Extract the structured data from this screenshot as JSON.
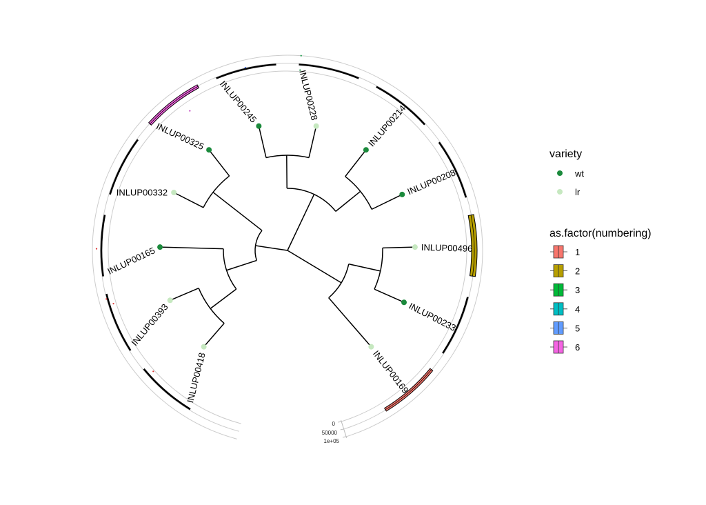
{
  "tree": {
    "tips": [
      {
        "id": "t496",
        "label": "INLUP00496",
        "variety": "lr",
        "numbering": "2"
      },
      {
        "id": "t233",
        "label": "INLUP00233",
        "variety": "wt",
        "numbering": null
      },
      {
        "id": "t169",
        "label": "INLUP00169",
        "variety": "lr",
        "numbering": "1"
      },
      {
        "id": "t418",
        "label": "INLUP00418",
        "variety": "lr",
        "numbering": null
      },
      {
        "id": "t393",
        "label": "INLUP00393",
        "variety": "lr",
        "numbering": null
      },
      {
        "id": "t165",
        "label": "INLUP00165",
        "variety": "wt",
        "numbering": null
      },
      {
        "id": "t332",
        "label": "INLUP00332",
        "variety": "lr",
        "numbering": null
      },
      {
        "id": "t325",
        "label": "INLUP00325",
        "variety": "wt",
        "numbering": "6"
      },
      {
        "id": "t245",
        "label": "INLUP00245",
        "variety": "wt",
        "numbering": null
      },
      {
        "id": "t228",
        "label": "INLUP00228",
        "variety": "lr",
        "numbering": null
      },
      {
        "id": "t214",
        "label": "INLUP00214",
        "variety": "wt",
        "numbering": null
      },
      {
        "id": "t208",
        "label": "INLUP00208",
        "variety": "wt",
        "numbering": null
      }
    ]
  },
  "ring_axis": {
    "ticks": [
      "0",
      "50000",
      "1e+05"
    ]
  },
  "legend_variety": {
    "title": "variety",
    "items": [
      {
        "key": "wt",
        "label": "wt",
        "color": "#1b8a3c"
      },
      {
        "key": "lr",
        "label": "lr",
        "color": "#c6e8c0"
      }
    ]
  },
  "legend_numbering": {
    "title": "as.factor(numbering)",
    "items": [
      {
        "label": "1",
        "color": "#F8766D"
      },
      {
        "label": "2",
        "color": "#B79F00"
      },
      {
        "label": "3",
        "color": "#00BA38"
      },
      {
        "label": "4",
        "color": "#00BFC4"
      },
      {
        "label": "5",
        "color": "#619CFF"
      },
      {
        "label": "6",
        "color": "#F564E3"
      }
    ]
  }
}
